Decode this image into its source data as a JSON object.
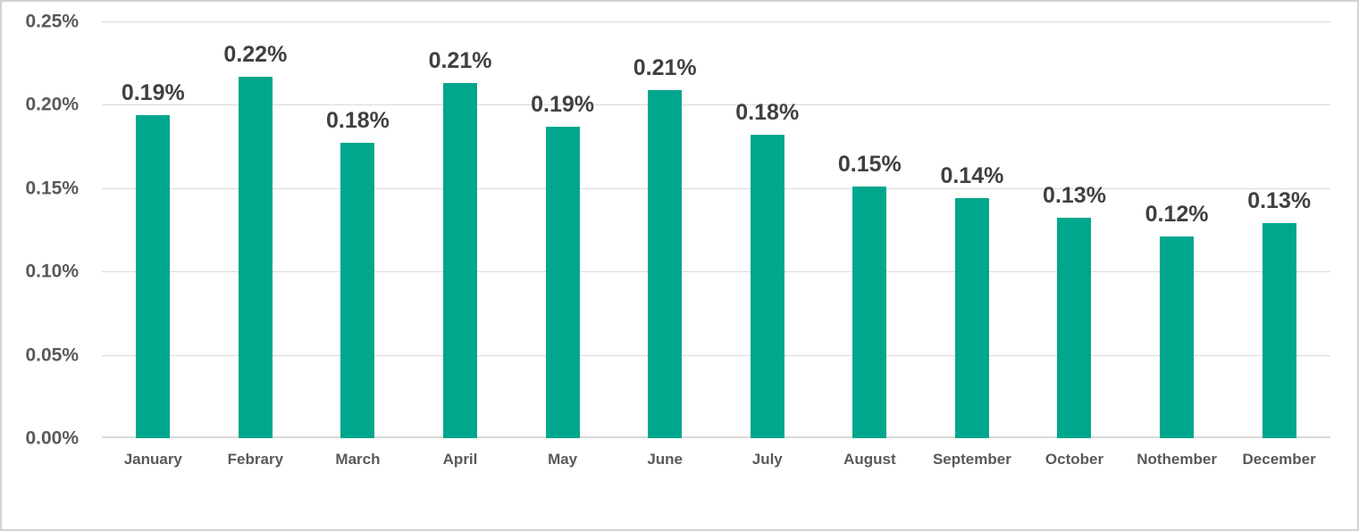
{
  "chart_data": {
    "type": "bar",
    "categories": [
      "January",
      "Febrary",
      "March",
      "April",
      "May",
      "June",
      "July",
      "August",
      "September",
      "October",
      "Nothember",
      "December"
    ],
    "values": [
      0.194,
      0.217,
      0.177,
      0.213,
      0.187,
      0.209,
      0.182,
      0.151,
      0.144,
      0.132,
      0.121,
      0.129
    ],
    "value_labels": [
      "0.19%",
      "0.22%",
      "0.18%",
      "0.21%",
      "0.19%",
      "0.21%",
      "0.18%",
      "0.15%",
      "0.14%",
      "0.13%",
      "0.12%",
      "0.13%"
    ],
    "value_unit": "percent",
    "ylim": [
      0,
      0.25
    ],
    "yticks": [
      0,
      0.05,
      0.1,
      0.15,
      0.2,
      0.25
    ],
    "ytick_labels": [
      "0.00%",
      "0.05%",
      "0.10%",
      "0.15%",
      "0.20%",
      "0.25%"
    ],
    "grid": true,
    "legend": false,
    "xlabel": "",
    "ylabel": ""
  },
  "colors": {
    "bar_fill": "#00A78D",
    "gridline": "#d9d9d9",
    "axis_line": "#d9d9d9",
    "data_label": "#404040",
    "axis_label": "#595959",
    "frame_border": "#d2d2d2",
    "background": "#ffffff"
  }
}
